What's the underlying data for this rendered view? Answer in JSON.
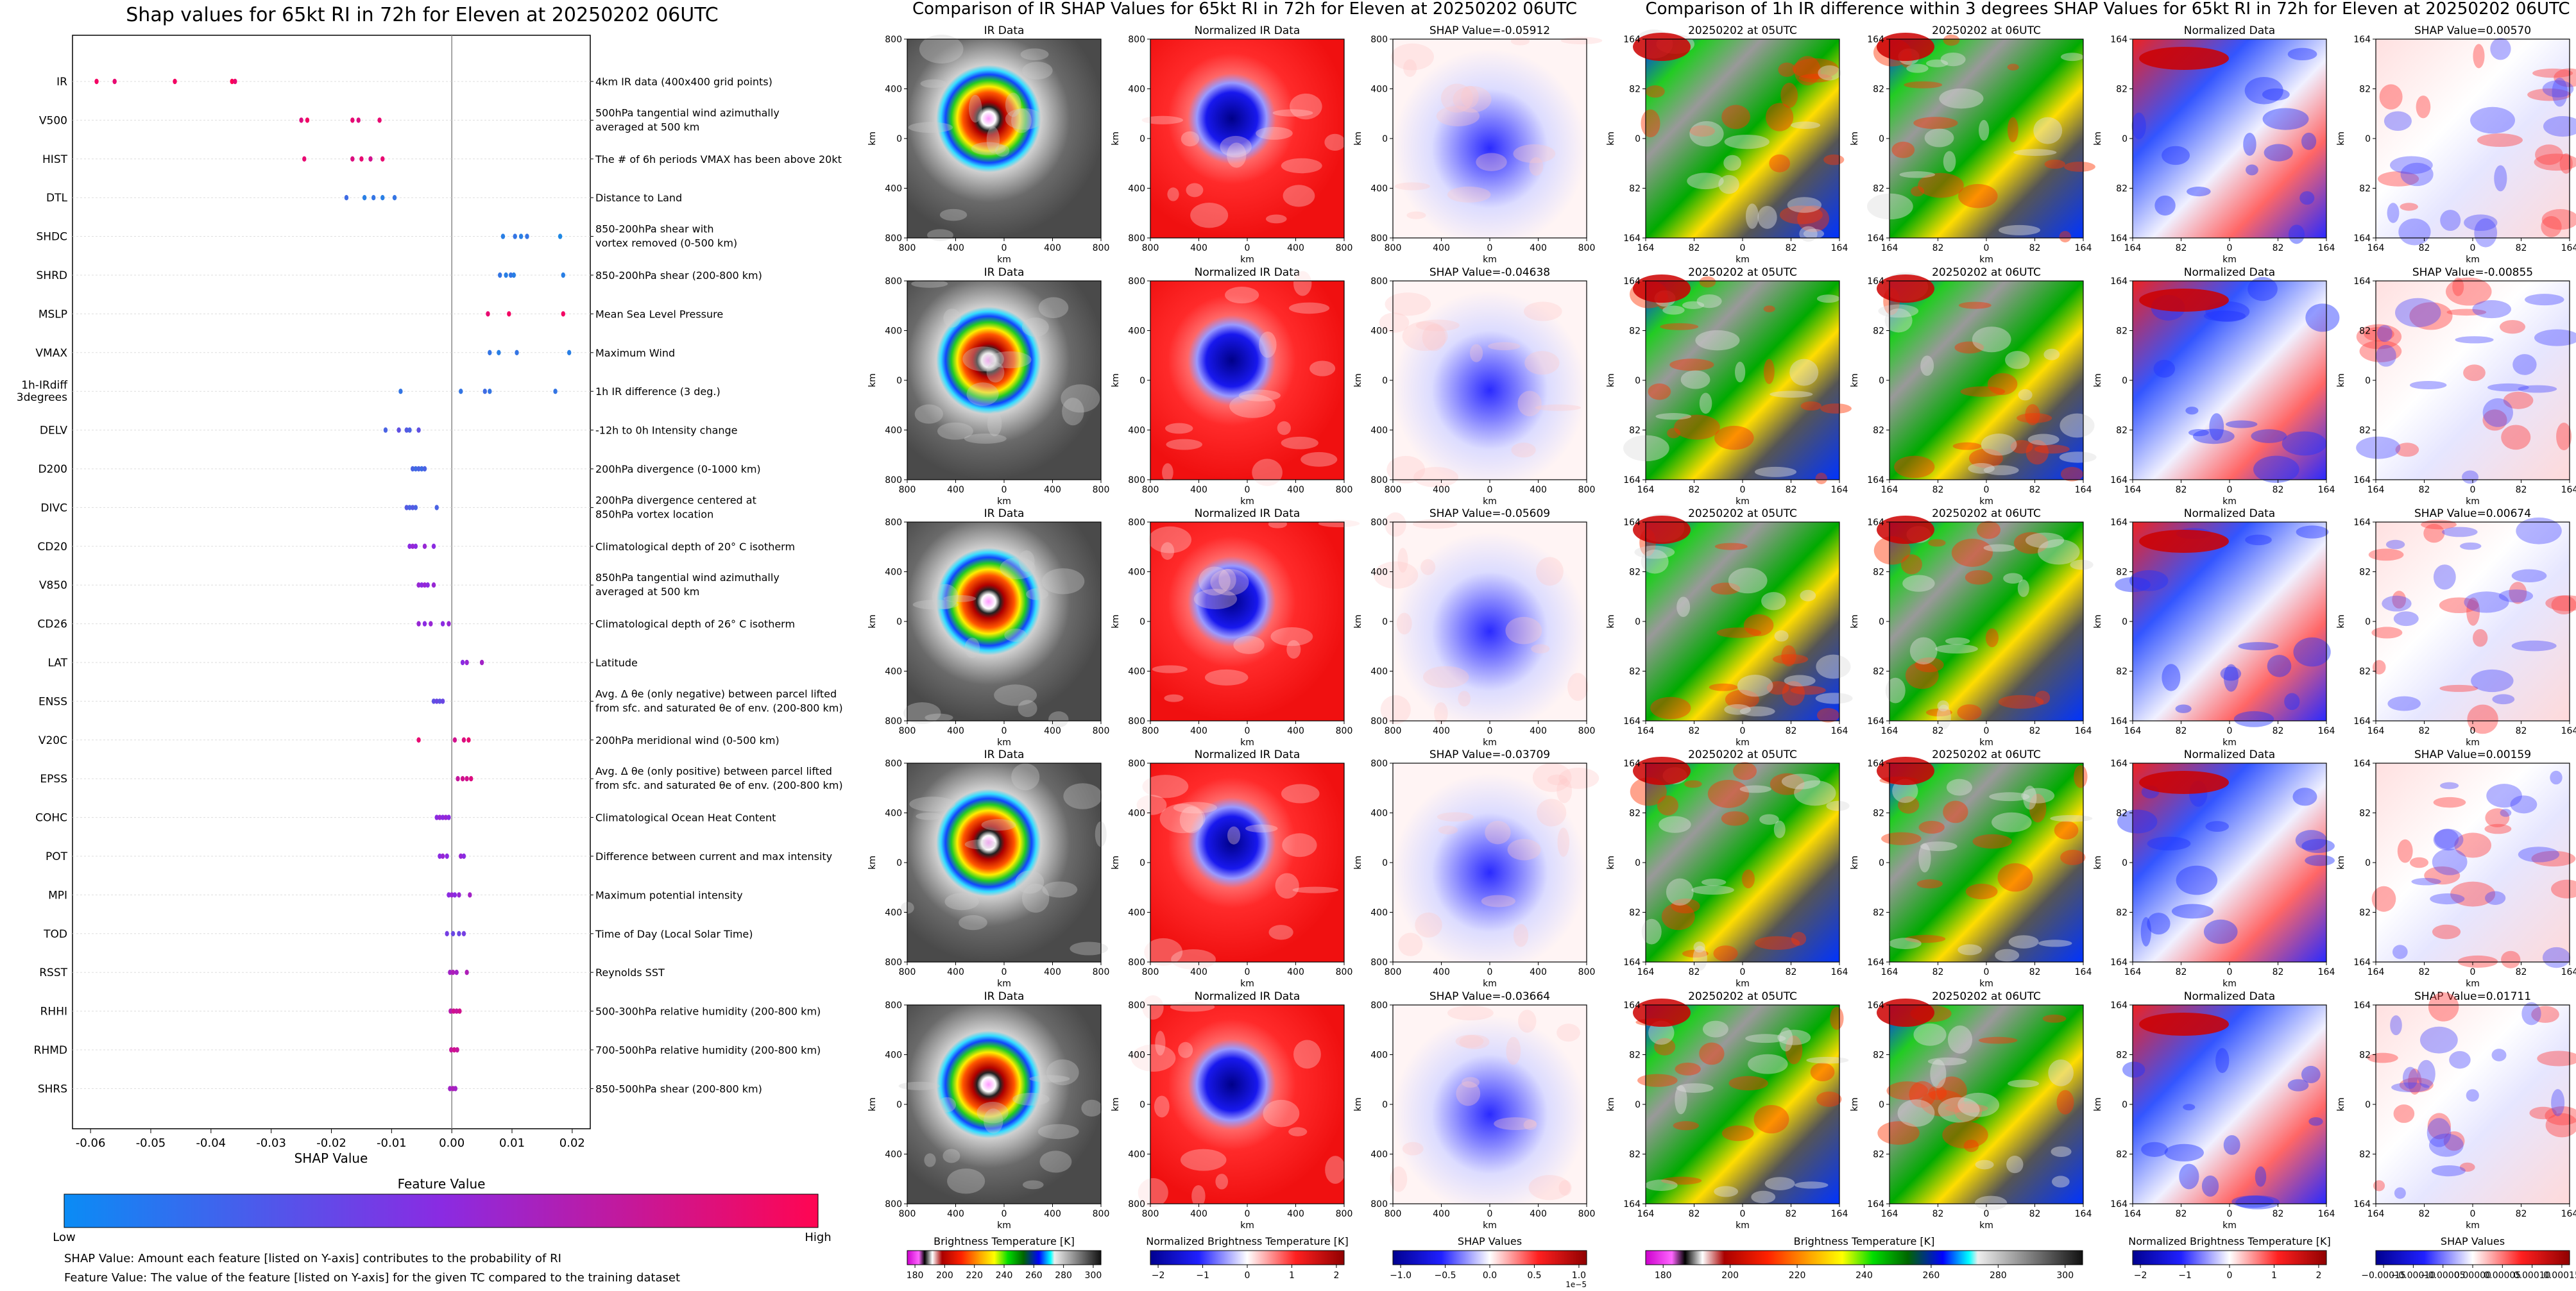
{
  "colors": {
    "feature_low": "#1e88e5",
    "feature_mid": "#8b2be2",
    "feature_high": "#ff0055",
    "neg": "#0000cc",
    "pos": "#cc0000",
    "zero_line": "#888888"
  },
  "chart_data": [
    {
      "type": "scatter",
      "title": "Shap values for 65kt RI in 72h for Eleven at 20250202 06UTC",
      "xlabel": "SHAP Value",
      "xlim": [
        -0.063,
        0.023
      ],
      "xticks": [
        "-0.06",
        "-0.05",
        "-0.04",
        "-0.03",
        "-0.02",
        "-0.01",
        "0.00",
        "0.01",
        "0.02"
      ],
      "xtick_values": [
        -0.06,
        -0.05,
        -0.04,
        -0.03,
        -0.02,
        -0.01,
        0.0,
        0.01,
        0.02
      ],
      "grid": false,
      "features": [
        {
          "name": "IR",
          "desc": "4km IR data (400x400 grid points)",
          "points": [
            [
              -0.059,
              0.95
            ],
            [
              -0.056,
              0.9
            ],
            [
              -0.046,
              0.95
            ],
            [
              -0.0365,
              1.0
            ],
            [
              -0.036,
              0.9
            ]
          ]
        },
        {
          "name": "V500",
          "desc": "500hPa tangential wind azimuthally\naveraged at 500 km",
          "points": [
            [
              -0.025,
              0.85
            ],
            [
              -0.024,
              0.95
            ],
            [
              -0.0165,
              0.9
            ],
            [
              -0.0155,
              0.85
            ],
            [
              -0.012,
              0.9
            ]
          ]
        },
        {
          "name": "HIST",
          "desc": "The # of 6h periods VMAX has been above 20kt",
          "points": [
            [
              -0.0245,
              0.9
            ],
            [
              -0.0165,
              0.85
            ],
            [
              -0.015,
              0.9
            ],
            [
              -0.0135,
              0.8
            ],
            [
              -0.0115,
              0.9
            ]
          ]
        },
        {
          "name": "DTL",
          "desc": "Distance to Land",
          "points": [
            [
              -0.0175,
              0.15
            ],
            [
              -0.0145,
              0.05
            ],
            [
              -0.013,
              0.1
            ],
            [
              -0.0115,
              0.05
            ],
            [
              -0.0095,
              0.1
            ]
          ]
        },
        {
          "name": "SHDC",
          "desc": "850-200hPa shear with\nvortex removed (0-500 km)",
          "points": [
            [
              0.0085,
              0.05
            ],
            [
              0.0105,
              0.1
            ],
            [
              0.0115,
              0.05
            ],
            [
              0.0125,
              0.1
            ],
            [
              0.018,
              0.0
            ]
          ]
        },
        {
          "name": "SHRD",
          "desc": "850-200hPa shear (200-800 km)",
          "points": [
            [
              0.008,
              0.1
            ],
            [
              0.009,
              0.05
            ],
            [
              0.0098,
              0.1
            ],
            [
              0.0103,
              0.05
            ],
            [
              0.0185,
              0.05
            ]
          ]
        },
        {
          "name": "MSLP",
          "desc": "Mean Sea Level Pressure",
          "points": [
            [
              0.006,
              0.9
            ],
            [
              0.0095,
              0.95
            ],
            [
              0.0185,
              0.95
            ]
          ]
        },
        {
          "name": "VMAX",
          "desc": "Maximum Wind",
          "points": [
            [
              0.0063,
              0.1
            ],
            [
              0.0078,
              0.05
            ],
            [
              0.0108,
              0.1
            ],
            [
              0.0195,
              0.05
            ]
          ]
        },
        {
          "name": "1h-IRdiff 3degrees",
          "desc": "1h IR difference (3 deg.)",
          "points": [
            [
              -0.0085,
              0.1
            ],
            [
              0.0015,
              0.1
            ],
            [
              0.0055,
              0.15
            ],
            [
              0.0063,
              0.1
            ],
            [
              0.0172,
              0.1
            ]
          ]
        },
        {
          "name": "DELV",
          "desc": "-12h to 0h Intensity change",
          "points": [
            [
              -0.011,
              0.2
            ],
            [
              -0.0088,
              0.3
            ],
            [
              -0.0075,
              0.25
            ],
            [
              -0.007,
              0.2
            ],
            [
              -0.0055,
              0.3
            ]
          ]
        },
        {
          "name": "D200",
          "desc": "200hPa divergence (0-1000 km)",
          "points": [
            [
              -0.0065,
              0.2
            ],
            [
              -0.006,
              0.15
            ],
            [
              -0.0055,
              0.2
            ],
            [
              -0.005,
              0.15
            ],
            [
              -0.0045,
              0.2
            ]
          ]
        },
        {
          "name": "DIVC",
          "desc": "200hPa divergence centered at\n850hPa vortex location",
          "points": [
            [
              -0.0075,
              0.25
            ],
            [
              -0.007,
              0.2
            ],
            [
              -0.0065,
              0.25
            ],
            [
              -0.006,
              0.2
            ],
            [
              -0.0025,
              0.2
            ]
          ]
        },
        {
          "name": "CD20",
          "desc": "Climatological depth of 20° C isotherm",
          "points": [
            [
              -0.007,
              0.5
            ],
            [
              -0.0065,
              0.55
            ],
            [
              -0.006,
              0.5
            ],
            [
              -0.0045,
              0.55
            ],
            [
              -0.003,
              0.5
            ]
          ]
        },
        {
          "name": "V850",
          "desc": "850hPa tangential wind azimuthally\naveraged at 500 km",
          "points": [
            [
              -0.0055,
              0.55
            ],
            [
              -0.005,
              0.5
            ],
            [
              -0.0045,
              0.55
            ],
            [
              -0.004,
              0.5
            ],
            [
              -0.003,
              0.55
            ]
          ]
        },
        {
          "name": "CD26",
          "desc": "Climatological depth of 26° C isotherm",
          "points": [
            [
              -0.0055,
              0.55
            ],
            [
              -0.0045,
              0.5
            ],
            [
              -0.0035,
              0.55
            ],
            [
              -0.0015,
              0.5
            ],
            [
              -0.0005,
              0.55
            ]
          ]
        },
        {
          "name": "LAT",
          "desc": "Latitude",
          "points": [
            [
              0.0018,
              0.5
            ],
            [
              0.0025,
              0.55
            ],
            [
              0.005,
              0.6
            ]
          ]
        },
        {
          "name": "ENSS",
          "desc": "Avg. Δ θe (only negative) between parcel lifted\nfrom sfc. and saturated θe of env. (200-800 km)",
          "points": [
            [
              -0.003,
              0.3
            ],
            [
              -0.0025,
              0.35
            ],
            [
              -0.002,
              0.3
            ],
            [
              -0.0015,
              0.35
            ]
          ]
        },
        {
          "name": "V20C",
          "desc": "200hPa meridional wind (0-500 km)",
          "points": [
            [
              -0.0055,
              0.9
            ],
            [
              0.0005,
              0.8
            ],
            [
              0.002,
              0.85
            ],
            [
              0.0028,
              0.9
            ]
          ]
        },
        {
          "name": "EPSS",
          "desc": "Avg. Δ θe (only positive) between parcel lifted\nfrom sfc. and saturated θe of env. (200-800 km)",
          "points": [
            [
              0.001,
              0.75
            ],
            [
              0.0018,
              0.8
            ],
            [
              0.0025,
              0.8
            ],
            [
              0.0032,
              0.85
            ]
          ]
        },
        {
          "name": "COHC",
          "desc": "Climatological Ocean Heat Content",
          "points": [
            [
              -0.0025,
              0.5
            ],
            [
              -0.002,
              0.55
            ],
            [
              -0.0015,
              0.5
            ],
            [
              -0.001,
              0.55
            ],
            [
              -0.0005,
              0.5
            ]
          ]
        },
        {
          "name": "POT",
          "desc": "Difference between current and max intensity",
          "points": [
            [
              -0.002,
              0.5
            ],
            [
              -0.0015,
              0.55
            ],
            [
              -0.0008,
              0.5
            ],
            [
              0.0015,
              0.55
            ],
            [
              0.002,
              0.5
            ]
          ]
        },
        {
          "name": "MPI",
          "desc": "Maximum potential intensity",
          "points": [
            [
              -0.0005,
              0.5
            ],
            [
              0.0,
              0.55
            ],
            [
              0.0005,
              0.5
            ],
            [
              0.0012,
              0.55
            ],
            [
              0.003,
              0.6
            ]
          ]
        },
        {
          "name": "TOD",
          "desc": "Time of Day (Local Solar Time)",
          "points": [
            [
              -0.0008,
              0.4
            ],
            [
              0.0002,
              0.35
            ],
            [
              0.0012,
              0.35
            ],
            [
              0.002,
              0.4
            ]
          ]
        },
        {
          "name": "RSST",
          "desc": "Reynolds SST",
          "points": [
            [
              -0.0003,
              0.6
            ],
            [
              0.0002,
              0.65
            ],
            [
              0.0008,
              0.6
            ],
            [
              0.0025,
              0.65
            ]
          ]
        },
        {
          "name": "RHHI",
          "desc": "500-300hPa relative humidity (200-800 km)",
          "points": [
            [
              -0.0002,
              0.7
            ],
            [
              0.0003,
              0.8
            ],
            [
              0.0008,
              0.75
            ],
            [
              0.0013,
              0.8
            ]
          ]
        },
        {
          "name": "RHMD",
          "desc": "700-500hPa relative humidity (200-800 km)",
          "points": [
            [
              -0.0001,
              0.75
            ],
            [
              0.0004,
              0.8
            ],
            [
              0.0009,
              0.75
            ]
          ]
        },
        {
          "name": "SHRS",
          "desc": "850-500hPa shear (200-800 km)",
          "points": [
            [
              -0.0003,
              0.6
            ],
            [
              0.0002,
              0.65
            ],
            [
              0.0006,
              0.6
            ]
          ]
        }
      ],
      "colorbar": {
        "title": "Feature Value",
        "low": "Low",
        "high": "High"
      },
      "footnotes": [
        "SHAP Value: Amount each feature [listed on Y-axis] contributes to the probability of RI",
        "Feature Value: The value of the feature [listed on Y-axis] for the given TC compared to the training dataset"
      ]
    },
    {
      "type": "heatmap",
      "title": "Comparison of IR SHAP Values for 65kt RI in 72h for Eleven at 20250202 06UTC",
      "axis_label": "km",
      "xticks": [
        "800",
        "400",
        "0",
        "400",
        "800"
      ],
      "yticks": [
        "800",
        "400",
        "0",
        "400",
        "800"
      ],
      "columns": [
        "IR Data",
        "Normalized IR Data",
        "SHAP Value"
      ],
      "shap_values": [
        "-0.05912",
        "-0.04638",
        "-0.05609",
        "-0.03709",
        "-0.03664"
      ],
      "colorbars": [
        {
          "title": "Brightness Temperature [K]",
          "ticks": [
            "180",
            "200",
            "220",
            "240",
            "260",
            "280",
            "300"
          ]
        },
        {
          "title": "Normalized Brightness Temperature [K]",
          "ticks": [
            "−2",
            "−1",
            "0",
            "1",
            "2"
          ]
        },
        {
          "title": "SHAP Values",
          "ticks": [
            "−1.0",
            "−0.5",
            "0.0",
            "0.5",
            "1.0"
          ],
          "offset": "1e−5"
        }
      ]
    },
    {
      "type": "heatmap",
      "title": "Comparison of 1h IR difference within 3 degrees SHAP Values for 65kt RI in 72h for Eleven at 20250202 06UTC",
      "axis_label": "km",
      "xticks": [
        "164",
        "82",
        "0",
        "82",
        "164"
      ],
      "yticks": [
        "164",
        "82",
        "0",
        "82",
        "164"
      ],
      "row1_times": [
        "20250202 at 05UTC",
        "20250202 at 06UTC"
      ],
      "times": [
        "20250202 at 05UTC",
        "20250202 at 06UTC"
      ],
      "normalized_label": "Normalized Data",
      "shap_values": [
        "0.00570",
        "-0.00855",
        "0.00674",
        "0.00159",
        "0.01711"
      ],
      "colorbars": [
        {
          "title": "Brightness Temperature [K]",
          "ticks": [
            "180",
            "200",
            "220",
            "240",
            "260",
            "280",
            "300"
          ]
        },
        {
          "title": "Normalized Brightness Temperature [K]",
          "ticks": [
            "−2",
            "−1",
            "0",
            "1",
            "2"
          ]
        },
        {
          "title": "SHAP Values",
          "ticks": [
            "−0.00015",
            "−0.00010",
            "−0.00005",
            "0.00000",
            "0.00005",
            "0.00010",
            "0.00015"
          ]
        }
      ]
    }
  ]
}
